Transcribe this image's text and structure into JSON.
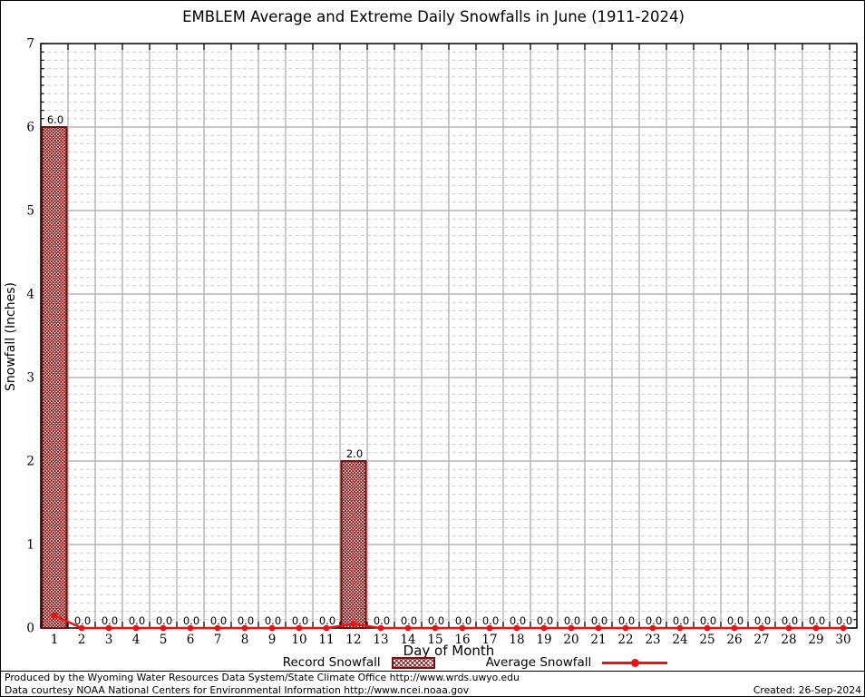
{
  "title": "EMBLEM Average and Extreme Daily Snowfalls in June (1911-2024)",
  "chart_data": {
    "type": "bar",
    "title": "EMBLEM Average and Extreme Daily Snowfalls in June (1911-2024)",
    "xlabel": "Day of Month",
    "ylabel": "Snowfall (Inches)",
    "xlim": [
      0.5,
      30.5
    ],
    "ylim": [
      0,
      7
    ],
    "y_major_step": 1,
    "y_minor_step": 0.1,
    "grid": true,
    "legend_position": "bottom",
    "categories": [
      1,
      2,
      3,
      4,
      5,
      6,
      7,
      8,
      9,
      10,
      11,
      12,
      13,
      14,
      15,
      16,
      17,
      18,
      19,
      20,
      21,
      22,
      23,
      24,
      25,
      26,
      27,
      28,
      29,
      30
    ],
    "series": [
      {
        "name": "Record Snowfall",
        "type": "bar",
        "pattern": "crosshatch",
        "color": "#8b1414",
        "border_color": "#7f0d0d",
        "show_value_labels": true,
        "values": [
          6.0,
          0.0,
          0.0,
          0.0,
          0.0,
          0.0,
          0.0,
          0.0,
          0.0,
          0.0,
          0.0,
          2.0,
          0.0,
          0.0,
          0.0,
          0.0,
          0.0,
          0.0,
          0.0,
          0.0,
          0.0,
          0.0,
          0.0,
          0.0,
          0.0,
          0.0,
          0.0,
          0.0,
          0.0,
          0.0
        ]
      },
      {
        "name": "Average Snowfall",
        "type": "line",
        "marker": "dot",
        "color": "#ee1111",
        "values": [
          0.15,
          0,
          0,
          0,
          0,
          0,
          0,
          0,
          0,
          0,
          0,
          0.05,
          0,
          0,
          0,
          0,
          0,
          0,
          0,
          0,
          0,
          0,
          0,
          0,
          0,
          0,
          0,
          0,
          0,
          0
        ]
      }
    ],
    "colors": {
      "grid_major": "#b4b4b4",
      "grid_minor": "#cbcbcb",
      "axis": "#000000"
    }
  },
  "footer": {
    "line1": "Produced by the Wyoming Water Resources Data System/State Climate Office http://www.wrds.uwyo.edu",
    "line2": "Data courtesy NOAA National Centers for Environmental Information http://www.ncei.noaa.gov",
    "created": "Created: 26-Sep-2024"
  }
}
